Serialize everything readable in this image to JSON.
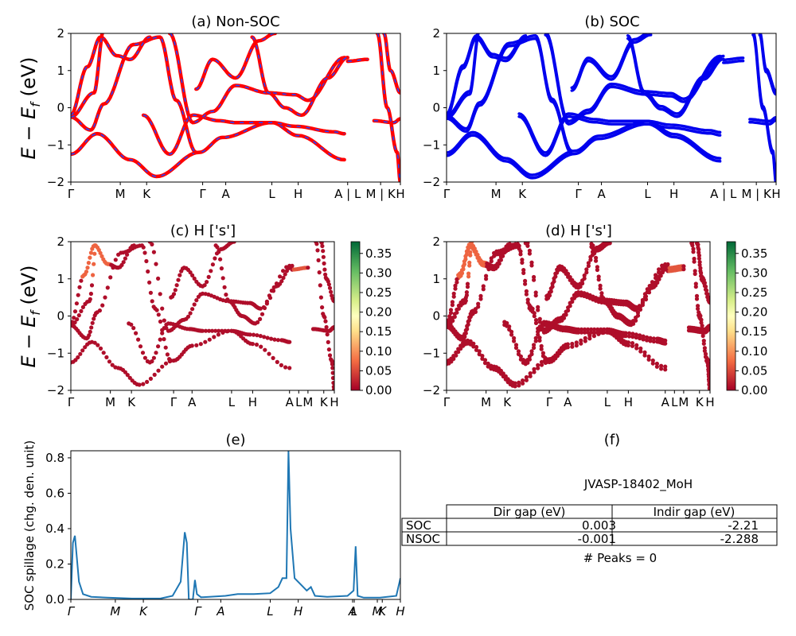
{
  "figure": {
    "id_label": "JVASP-18402_MoH",
    "peaks_text": "# Peaks = 0"
  },
  "panels": {
    "a": {
      "title": "(a) Non-SOC"
    },
    "b": {
      "title": "(b) SOC"
    },
    "c": {
      "title": "(c)  H ['s']"
    },
    "d": {
      "title": "(d) H ['s']"
    },
    "e": {
      "title": "(e)",
      "ylabel": "SOC spillage (chg. den. unit)"
    },
    "f": {
      "title": "(f)"
    }
  },
  "band_ylabel": "E − E",
  "band_ylabel_sub": "f",
  "band_ylabel_unit": " (eV)",
  "kpath_labels": [
    "Γ",
    "M",
    "K",
    "Γ",
    "A",
    "L",
    "H",
    "A",
    "L",
    "M",
    "K",
    "H"
  ],
  "kpath_top_labels": [
    "Γ",
    "M",
    "K",
    "Γ",
    "A",
    "L",
    "H",
    "A | L",
    "M | K",
    "H"
  ],
  "kpath_e_labels": [
    "Γ",
    "M",
    "K",
    "Γ",
    "A",
    "L",
    "H",
    "A",
    "L",
    "M",
    "K",
    "H"
  ],
  "colors": {
    "nonsoc": "#ff0000",
    "nonsoc_dash": "#2244ff",
    "soc": "#0000ee",
    "spillage": "#1f77b4"
  },
  "colorbar": {
    "ticks": [
      "0.00",
      "0.05",
      "0.10",
      "0.15",
      "0.20",
      "0.25",
      "0.30",
      "0.35"
    ],
    "min": 0,
    "max": 0.38,
    "colormap": "RdYlGn"
  },
  "table": {
    "headers": [
      "",
      "Dir gap (eV)",
      "Indir gap (eV)"
    ],
    "rows": [
      [
        "SOC",
        "0.003",
        "-2.21"
      ],
      [
        "NSOC",
        "-0.001",
        "-2.288"
      ]
    ]
  },
  "chart_data": [
    {
      "type": "line",
      "title": "(a) Non-SOC",
      "ylabel": "E − E_f (eV)",
      "ylim": [
        -2,
        2
      ],
      "yticks": [
        -2,
        -1,
        0,
        1,
        2
      ],
      "xtick_labels": [
        "Γ",
        "M",
        "K",
        "Γ",
        "A",
        "L",
        "H",
        "A | L",
        "M | K",
        "H"
      ],
      "series": [
        {
          "name": "Non-SOC",
          "note": "band energies at high-symmetry points (eV)",
          "points": [
            [
              "Γ",
              -1.25
            ],
            [
              "M",
              -1.4
            ],
            [
              "K",
              -1.85
            ],
            [
              "Γ",
              -1.2
            ],
            [
              "A",
              -0.8
            ],
            [
              "L",
              -0.4
            ],
            [
              "H",
              -0.75
            ],
            [
              "A",
              -1.4
            ]
          ]
        },
        {
          "points": [
            [
              "Γ",
              -0.2
            ],
            [
              "M",
              1.3
            ],
            [
              "K",
              1.9
            ],
            [
              "Γ",
              -0.4
            ],
            [
              "A",
              1.3
            ],
            [
              "L",
              0.35
            ],
            [
              "H",
              0.3
            ],
            [
              "A",
              1.35
            ]
          ]
        },
        {
          "points": [
            [
              "Γ",
              -0.25
            ],
            [
              "M",
              -0.65
            ],
            [
              "K",
              -1.35
            ],
            [
              "Γ",
              -0.2
            ],
            [
              "A",
              -0.35
            ],
            [
              "L",
              -0.4
            ],
            [
              "H",
              -0.5
            ],
            [
              "A",
              -0.65
            ]
          ]
        }
      ]
    },
    {
      "type": "line",
      "title": "(b) SOC",
      "ylim": [
        -2,
        2
      ],
      "yticks": [
        -2,
        -1,
        0,
        1,
        2
      ],
      "xtick_labels": [
        "Γ",
        "M",
        "K",
        "Γ",
        "A",
        "L",
        "H",
        "A | L",
        "M | K",
        "H"
      ]
    },
    {
      "type": "scatter",
      "title": "(c)  H ['s']",
      "ylim": [
        -2,
        2
      ],
      "yticks": [
        -2,
        -1,
        0,
        1,
        2
      ],
      "xtick_labels": [
        "Γ",
        "M",
        "K",
        "Γ",
        "A",
        "L",
        "H",
        "A",
        "L",
        "M",
        "K",
        "H"
      ],
      "colorbar_range": [
        0,
        0.38
      ]
    },
    {
      "type": "scatter",
      "title": "(d) H ['s']",
      "ylim": [
        -2,
        2
      ],
      "yticks": [
        -2,
        -1,
        0,
        1,
        2
      ],
      "xtick_labels": [
        "Γ",
        "M",
        "K",
        "Γ",
        "A",
        "L",
        "H",
        "A",
        "L",
        "M",
        "K",
        "H"
      ],
      "colorbar_range": [
        0,
        0.38
      ]
    },
    {
      "type": "line",
      "title": "(e)",
      "ylabel": "SOC spillage (chg. den. unit)",
      "ylim": [
        0,
        0.84
      ],
      "yticks": [
        0.0,
        0.2,
        0.4,
        0.6,
        0.8
      ],
      "xtick_labels": [
        "Γ",
        "M",
        "K",
        "Γ",
        "A",
        "L",
        "H",
        "A",
        "L",
        "M",
        "K",
        "H"
      ],
      "series": [
        {
          "x": [
            0,
            0.05,
            0.1,
            0.2,
            0.3,
            0.5,
            0.9,
            1.5,
            2.2,
            2.5,
            2.7,
            2.8,
            2.85,
            2.9,
            3.0,
            3.05,
            3.1,
            3.2,
            3.4,
            3.8,
            4.1,
            4.5,
            4.9,
            5.1,
            5.2,
            5.3,
            5.35,
            5.4,
            5.5,
            5.8,
            5.9,
            6.0,
            6.3,
            6.8,
            6.95,
            7.0,
            7.05,
            7.2,
            7.6,
            8.0,
            8.1
          ],
          "y": [
            0.0,
            0.32,
            0.36,
            0.1,
            0.03,
            0.015,
            0.01,
            0.005,
            0.005,
            0.02,
            0.1,
            0.38,
            0.32,
            0.0,
            0.0,
            0.11,
            0.03,
            0.012,
            0.015,
            0.02,
            0.03,
            0.03,
            0.035,
            0.07,
            0.12,
            0.12,
            0.84,
            0.4,
            0.12,
            0.05,
            0.07,
            0.02,
            0.015,
            0.02,
            0.05,
            0.3,
            0.02,
            0.01,
            0.01,
            0.02,
            0.12
          ]
        }
      ]
    }
  ]
}
